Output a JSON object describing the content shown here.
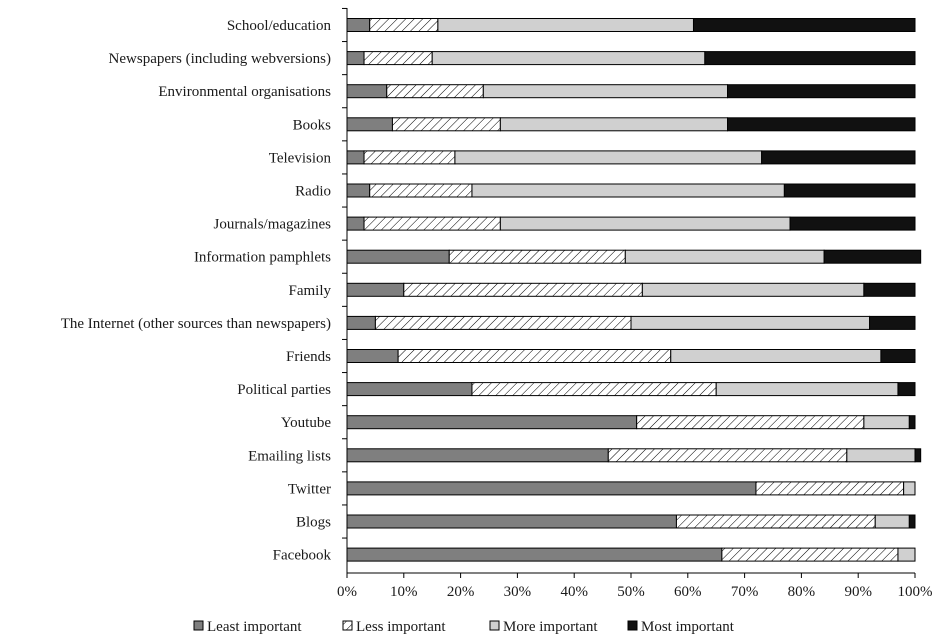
{
  "chart_data": {
    "type": "bar",
    "orientation": "horizontal",
    "stacked": true,
    "title": "",
    "xlabel": "",
    "ylabel": "",
    "xlim": [
      0,
      100
    ],
    "x_ticks": [
      "0%",
      "10%",
      "20%",
      "30%",
      "40%",
      "50%",
      "60%",
      "70%",
      "80%",
      "90%",
      "100%"
    ],
    "grid": false,
    "legend_position": "bottom",
    "categories": [
      "School/education",
      "Newspapers (including webversions)",
      "Environmental organisations",
      "Books",
      "Television",
      "Radio",
      "Journals/magazines",
      "Information pamphlets",
      "Family",
      "The Internet (other sources than newspapers)",
      "Friends",
      "Political parties",
      "Youtube",
      "Emailing lists",
      "Twitter",
      "Blogs",
      "Facebook"
    ],
    "series": [
      {
        "name": "Least important",
        "pattern": "solid-dark-gray",
        "color": "#7f7f7f",
        "values": [
          4,
          3,
          7,
          8,
          3,
          4,
          3,
          18,
          10,
          5,
          9,
          22,
          51,
          46,
          72,
          58,
          66
        ]
      },
      {
        "name": "Less important",
        "pattern": "diagonal-hatch",
        "color": "#ffffff",
        "values": [
          12,
          12,
          17,
          19,
          16,
          18,
          24,
          31,
          42,
          45,
          48,
          43,
          40,
          42,
          26,
          35,
          31
        ]
      },
      {
        "name": "More important",
        "pattern": "solid-light-gray",
        "color": "#d0d0d0",
        "values": [
          45,
          48,
          43,
          40,
          54,
          55,
          51,
          35,
          39,
          42,
          37,
          32,
          8,
          12,
          2,
          6,
          3
        ]
      },
      {
        "name": "Most important",
        "pattern": "solid-black",
        "color": "#111111",
        "values": [
          39,
          37,
          33,
          33,
          27,
          23,
          22,
          17,
          9,
          8,
          6,
          3,
          1,
          1,
          0,
          1,
          0
        ]
      }
    ]
  }
}
